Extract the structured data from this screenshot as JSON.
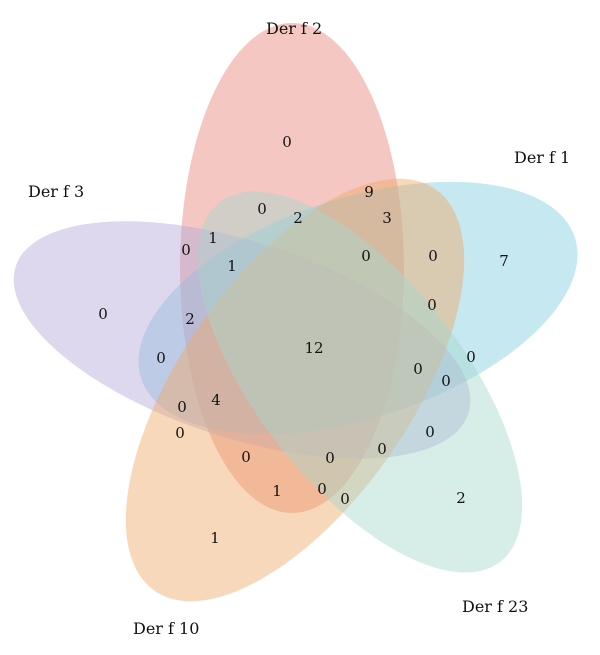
{
  "sets": [
    {
      "name": "Der f 2",
      "color": "#e8837a"
    },
    {
      "name": "Der f 1",
      "color": "#7fcde0"
    },
    {
      "name": "Der f 3",
      "color": "#b3a8d9"
    },
    {
      "name": "Der f 10",
      "color": "#f0a866"
    },
    {
      "name": "Der f 23",
      "color": "#a6d6cc"
    }
  ],
  "regions": [
    {
      "id": "only-der-f-2",
      "value": "0"
    },
    {
      "id": "only-der-f-1",
      "value": "7"
    },
    {
      "id": "only-der-f-3",
      "value": "0"
    },
    {
      "id": "only-der-f-10",
      "value": "1"
    },
    {
      "id": "only-der-f-23",
      "value": "2"
    },
    {
      "id": "center-all",
      "value": "12"
    },
    {
      "id": "r-a",
      "value": "9"
    },
    {
      "id": "r-b",
      "value": "3"
    },
    {
      "id": "r-c",
      "value": "0"
    },
    {
      "id": "r-d",
      "value": "2"
    },
    {
      "id": "r-e",
      "value": "0"
    },
    {
      "id": "r-f",
      "value": "0"
    },
    {
      "id": "r-g",
      "value": "0"
    },
    {
      "id": "r-h",
      "value": "0"
    },
    {
      "id": "r-i",
      "value": "1"
    },
    {
      "id": "r-j",
      "value": "1"
    },
    {
      "id": "r-k",
      "value": "0"
    },
    {
      "id": "r-l",
      "value": "2"
    },
    {
      "id": "r-m",
      "value": "0"
    },
    {
      "id": "r-n",
      "value": "0"
    },
    {
      "id": "r-o",
      "value": "0"
    },
    {
      "id": "r-p",
      "value": "0"
    },
    {
      "id": "r-q",
      "value": "0"
    },
    {
      "id": "r-r",
      "value": "4"
    },
    {
      "id": "r-s",
      "value": "0"
    },
    {
      "id": "r-t",
      "value": "0"
    },
    {
      "id": "r-u",
      "value": "0"
    },
    {
      "id": "r-v",
      "value": "0"
    },
    {
      "id": "r-w",
      "value": "0"
    },
    {
      "id": "r-x",
      "value": "1"
    },
    {
      "id": "r-y",
      "value": "0"
    },
    {
      "id": "r-z",
      "value": "0"
    }
  ]
}
